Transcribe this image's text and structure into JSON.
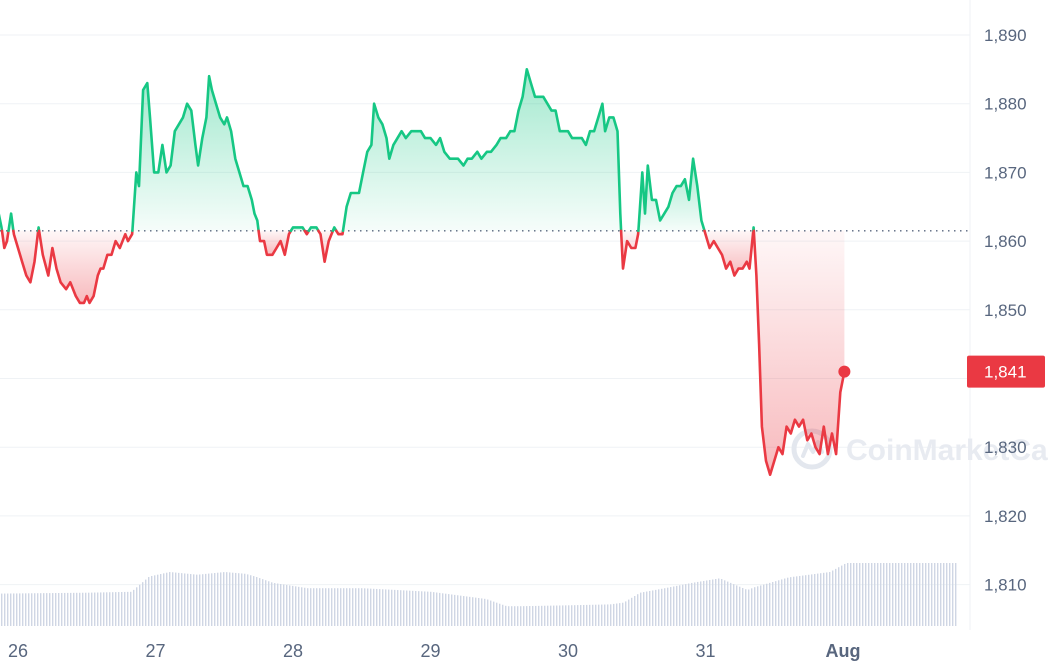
{
  "chart_data": {
    "type": "line",
    "y_ticks": [
      "1,890",
      "1,880",
      "1,870",
      "1,860",
      "1,850",
      "1,840",
      "1,830",
      "1,820",
      "1,810"
    ],
    "y_tick_values": [
      1890,
      1880,
      1870,
      1860,
      1850,
      1840,
      1830,
      1820,
      1810
    ],
    "x_ticks": [
      "26",
      "27",
      "28",
      "29",
      "30",
      "31",
      "Aug"
    ],
    "x_tick_days": [
      0,
      1,
      2,
      3,
      4,
      5,
      6
    ],
    "ylim": [
      1804,
      1894
    ],
    "xlim": [
      -0.14,
      6.85
    ],
    "baseline": 1861.5,
    "current_value": 1841,
    "current_label": "1,841",
    "series": [
      {
        "values": [
          [
            -0.14,
            1864
          ],
          [
            -0.12,
            1862
          ],
          [
            -0.1,
            1859
          ],
          [
            -0.08,
            1860
          ],
          [
            -0.05,
            1864
          ],
          [
            -0.03,
            1861
          ],
          [
            0,
            1859
          ],
          [
            0.03,
            1857
          ],
          [
            0.06,
            1855
          ],
          [
            0.09,
            1854
          ],
          [
            0.12,
            1857
          ],
          [
            0.15,
            1862
          ],
          [
            0.18,
            1858
          ],
          [
            0.22,
            1855
          ],
          [
            0.25,
            1859
          ],
          [
            0.28,
            1856
          ],
          [
            0.31,
            1854
          ],
          [
            0.35,
            1853
          ],
          [
            0.38,
            1854
          ],
          [
            0.42,
            1852
          ],
          [
            0.45,
            1851
          ],
          [
            0.48,
            1851
          ],
          [
            0.5,
            1852
          ],
          [
            0.52,
            1851
          ],
          [
            0.55,
            1852
          ],
          [
            0.58,
            1855
          ],
          [
            0.6,
            1856
          ],
          [
            0.62,
            1856
          ],
          [
            0.65,
            1858
          ],
          [
            0.68,
            1858
          ],
          [
            0.71,
            1860
          ],
          [
            0.74,
            1859
          ],
          [
            0.78,
            1861
          ],
          [
            0.8,
            1860
          ],
          [
            0.83,
            1861
          ],
          [
            0.86,
            1870
          ],
          [
            0.88,
            1868
          ],
          [
            0.91,
            1882
          ],
          [
            0.94,
            1883
          ],
          [
            0.96,
            1878
          ],
          [
            0.99,
            1870
          ],
          [
            1.02,
            1870
          ],
          [
            1.05,
            1874
          ],
          [
            1.08,
            1870
          ],
          [
            1.11,
            1871
          ],
          [
            1.14,
            1876
          ],
          [
            1.17,
            1877
          ],
          [
            1.2,
            1878
          ],
          [
            1.23,
            1880
          ],
          [
            1.26,
            1879
          ],
          [
            1.29,
            1874
          ],
          [
            1.31,
            1871
          ],
          [
            1.34,
            1875
          ],
          [
            1.37,
            1878
          ],
          [
            1.39,
            1884
          ],
          [
            1.41,
            1882
          ],
          [
            1.44,
            1880
          ],
          [
            1.47,
            1878
          ],
          [
            1.5,
            1877
          ],
          [
            1.52,
            1878
          ],
          [
            1.55,
            1876
          ],
          [
            1.58,
            1872
          ],
          [
            1.61,
            1870
          ],
          [
            1.64,
            1868
          ],
          [
            1.67,
            1868
          ],
          [
            1.7,
            1866
          ],
          [
            1.72,
            1864
          ],
          [
            1.74,
            1863
          ],
          [
            1.76,
            1860
          ],
          [
            1.79,
            1860
          ],
          [
            1.81,
            1858
          ],
          [
            1.85,
            1858
          ],
          [
            1.88,
            1859
          ],
          [
            1.91,
            1860
          ],
          [
            1.94,
            1858
          ],
          [
            1.97,
            1861
          ],
          [
            2,
            1862
          ],
          [
            2.04,
            1862
          ],
          [
            2.07,
            1862
          ],
          [
            2.1,
            1861
          ],
          [
            2.13,
            1862
          ],
          [
            2.17,
            1862
          ],
          [
            2.2,
            1861
          ],
          [
            2.23,
            1857
          ],
          [
            2.26,
            1860
          ],
          [
            2.3,
            1862
          ],
          [
            2.33,
            1861
          ],
          [
            2.36,
            1861
          ],
          [
            2.39,
            1865
          ],
          [
            2.42,
            1867
          ],
          [
            2.45,
            1867
          ],
          [
            2.48,
            1867
          ],
          [
            2.51,
            1870
          ],
          [
            2.54,
            1873
          ],
          [
            2.57,
            1874
          ],
          [
            2.59,
            1880
          ],
          [
            2.62,
            1878
          ],
          [
            2.65,
            1877
          ],
          [
            2.68,
            1875
          ],
          [
            2.7,
            1872
          ],
          [
            2.73,
            1874
          ],
          [
            2.76,
            1875
          ],
          [
            2.79,
            1876
          ],
          [
            2.82,
            1875
          ],
          [
            2.86,
            1876
          ],
          [
            2.89,
            1876
          ],
          [
            2.93,
            1876
          ],
          [
            2.96,
            1875
          ],
          [
            3,
            1875
          ],
          [
            3.04,
            1874
          ],
          [
            3.07,
            1875
          ],
          [
            3.1,
            1873
          ],
          [
            3.14,
            1872
          ],
          [
            3.17,
            1872
          ],
          [
            3.2,
            1872
          ],
          [
            3.24,
            1871
          ],
          [
            3.27,
            1872
          ],
          [
            3.3,
            1872
          ],
          [
            3.34,
            1873
          ],
          [
            3.37,
            1872
          ],
          [
            3.41,
            1873
          ],
          [
            3.44,
            1873
          ],
          [
            3.48,
            1874
          ],
          [
            3.51,
            1875
          ],
          [
            3.55,
            1875
          ],
          [
            3.58,
            1876
          ],
          [
            3.61,
            1876
          ],
          [
            3.64,
            1879
          ],
          [
            3.67,
            1881
          ],
          [
            3.7,
            1885
          ],
          [
            3.73,
            1883
          ],
          [
            3.76,
            1881
          ],
          [
            3.79,
            1881
          ],
          [
            3.82,
            1881
          ],
          [
            3.85,
            1880
          ],
          [
            3.88,
            1879
          ],
          [
            3.91,
            1879
          ],
          [
            3.94,
            1876
          ],
          [
            3.97,
            1876
          ],
          [
            4,
            1876
          ],
          [
            4.03,
            1875
          ],
          [
            4.07,
            1875
          ],
          [
            4.1,
            1875
          ],
          [
            4.13,
            1874
          ],
          [
            4.16,
            1876
          ],
          [
            4.19,
            1876
          ],
          [
            4.22,
            1878
          ],
          [
            4.25,
            1880
          ],
          [
            4.27,
            1876
          ],
          [
            4.3,
            1878
          ],
          [
            4.33,
            1878
          ],
          [
            4.36,
            1876
          ],
          [
            4.38,
            1864
          ],
          [
            4.4,
            1856
          ],
          [
            4.43,
            1860
          ],
          [
            4.46,
            1859
          ],
          [
            4.49,
            1859
          ],
          [
            4.51,
            1861
          ],
          [
            4.54,
            1870
          ],
          [
            4.56,
            1864
          ],
          [
            4.58,
            1871
          ],
          [
            4.61,
            1866
          ],
          [
            4.64,
            1866
          ],
          [
            4.67,
            1863
          ],
          [
            4.7,
            1864
          ],
          [
            4.73,
            1865
          ],
          [
            4.76,
            1867
          ],
          [
            4.79,
            1868
          ],
          [
            4.82,
            1868
          ],
          [
            4.85,
            1869
          ],
          [
            4.88,
            1866
          ],
          [
            4.91,
            1872
          ],
          [
            4.94,
            1868
          ],
          [
            4.97,
            1863
          ],
          [
            5.0,
            1861
          ],
          [
            5.03,
            1859
          ],
          [
            5.06,
            1860
          ],
          [
            5.09,
            1859
          ],
          [
            5.12,
            1858
          ],
          [
            5.15,
            1856
          ],
          [
            5.18,
            1857
          ],
          [
            5.21,
            1855
          ],
          [
            5.24,
            1856
          ],
          [
            5.27,
            1856
          ],
          [
            5.3,
            1857
          ],
          [
            5.32,
            1856
          ],
          [
            5.35,
            1862
          ],
          [
            5.37,
            1855
          ],
          [
            5.39,
            1845
          ],
          [
            5.41,
            1833
          ],
          [
            5.44,
            1828
          ],
          [
            5.47,
            1826
          ],
          [
            5.5,
            1828
          ],
          [
            5.53,
            1830
          ],
          [
            5.56,
            1829
          ],
          [
            5.59,
            1833
          ],
          [
            5.62,
            1832
          ],
          [
            5.65,
            1834
          ],
          [
            5.68,
            1833
          ],
          [
            5.71,
            1834
          ],
          [
            5.74,
            1831
          ],
          [
            5.77,
            1832
          ],
          [
            5.8,
            1830
          ],
          [
            5.83,
            1829
          ],
          [
            5.86,
            1833
          ],
          [
            5.89,
            1829
          ],
          [
            5.92,
            1832
          ],
          [
            5.95,
            1829
          ],
          [
            5.98,
            1838
          ],
          [
            6.01,
            1841
          ]
        ]
      },
      {
        "type": "bar",
        "name": "volume",
        "values": [
          [
            -0.14,
            0.36
          ],
          [
            0.5,
            0.37
          ],
          [
            0.82,
            0.38
          ],
          [
            0.95,
            0.55
          ],
          [
            1.1,
            0.6
          ],
          [
            1.3,
            0.57
          ],
          [
            1.5,
            0.6
          ],
          [
            1.65,
            0.58
          ],
          [
            1.72,
            0.55
          ],
          [
            1.85,
            0.48
          ],
          [
            2.1,
            0.42
          ],
          [
            2.5,
            0.42
          ],
          [
            3.0,
            0.38
          ],
          [
            3.4,
            0.3
          ],
          [
            3.55,
            0.22
          ],
          [
            3.65,
            0.22
          ],
          [
            4.0,
            0.23
          ],
          [
            4.3,
            0.24
          ],
          [
            4.4,
            0.26
          ],
          [
            4.52,
            0.37
          ],
          [
            4.7,
            0.42
          ],
          [
            4.9,
            0.48
          ],
          [
            5.1,
            0.53
          ],
          [
            5.3,
            0.4
          ],
          [
            5.35,
            0.43
          ],
          [
            5.6,
            0.54
          ],
          [
            5.9,
            0.6
          ],
          [
            6.02,
            0.7
          ]
        ]
      }
    ],
    "colors": {
      "up": "#16c784",
      "down": "#ea3943",
      "volume": "#cfd6e4",
      "grid": "#eff2f5",
      "baseline": "#58667e"
    },
    "grid": true
  },
  "watermark": {
    "text": "CoinMarketCap"
  }
}
